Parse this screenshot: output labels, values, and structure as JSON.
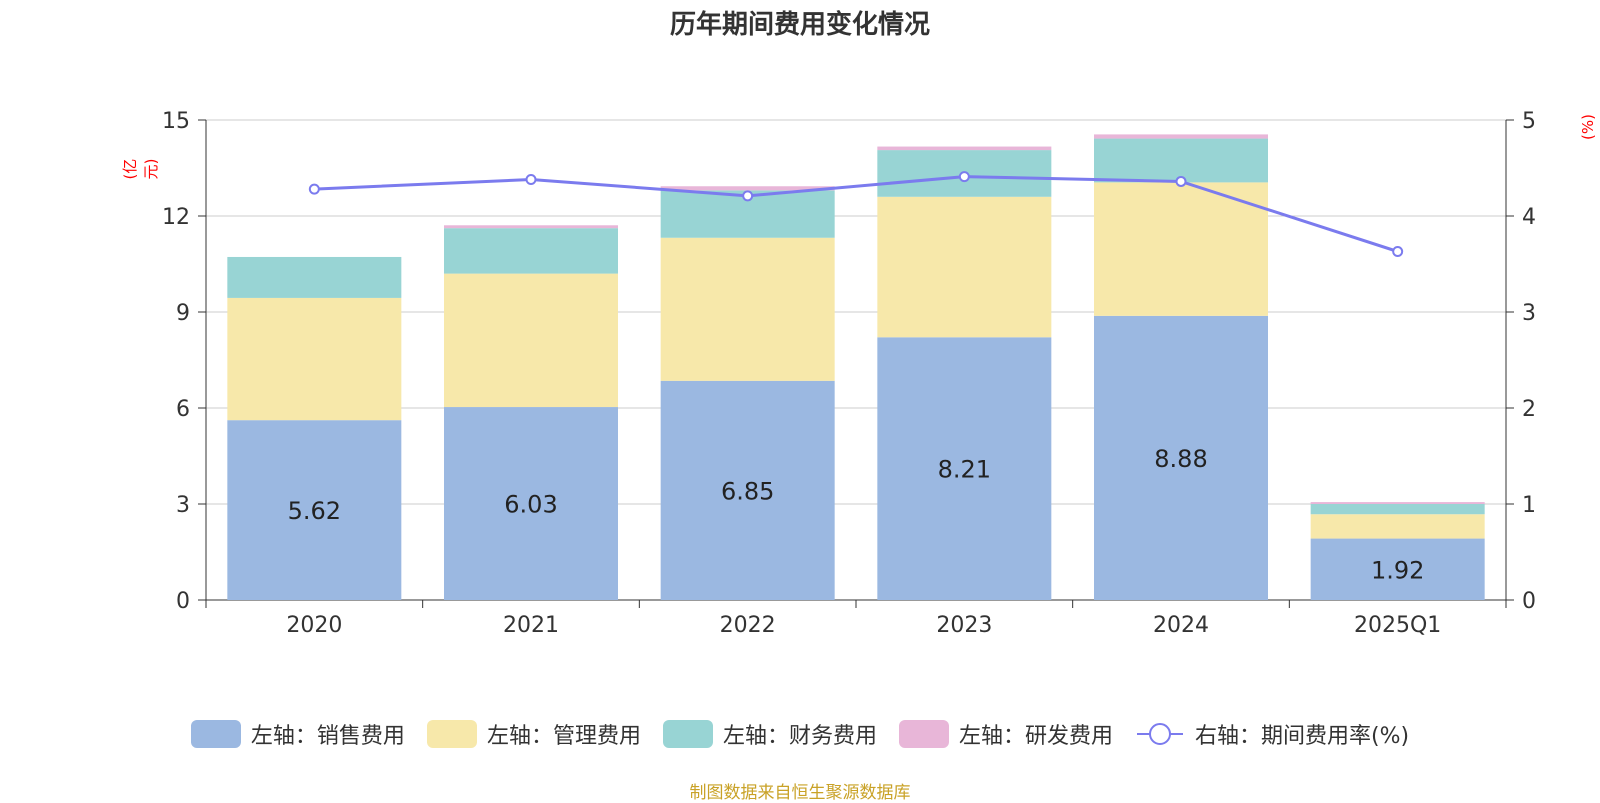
{
  "title": "历年期间费用变化情况",
  "left_unit": "(亿元)",
  "right_unit": "(%)",
  "source": "制图数据来自恒生聚源数据库",
  "colors": {
    "sales": "#9bb8e1",
    "management": "#f7e8aa",
    "finance": "#98d4d4",
    "rd": "#e8b6d8",
    "rate": "#7b7bee",
    "grid": "#cccccc",
    "axis": "#333333"
  },
  "legend": [
    {
      "label": "左轴：销售费用",
      "color": "#9bb8e1",
      "kind": "bar"
    },
    {
      "label": "左轴：管理费用",
      "color": "#f7e8aa",
      "kind": "bar"
    },
    {
      "label": "左轴：财务费用",
      "color": "#98d4d4",
      "kind": "bar"
    },
    {
      "label": "左轴：研发费用",
      "color": "#e8b6d8",
      "kind": "bar"
    },
    {
      "label": "右轴：期间费用率(%)",
      "color": "#7b7bee",
      "kind": "line"
    }
  ],
  "chart_data": {
    "type": "bar",
    "stacked": true,
    "categories": [
      "2020",
      "2021",
      "2022",
      "2023",
      "2024",
      "2025Q1"
    ],
    "series": [
      {
        "name": "左轴：销售费用",
        "axis": "left",
        "values": [
          5.62,
          6.03,
          6.85,
          8.21,
          8.88,
          1.92
        ],
        "labels_shown": true
      },
      {
        "name": "左轴：管理费用",
        "axis": "left",
        "values": [
          3.82,
          4.17,
          4.47,
          4.39,
          4.17,
          0.76
        ]
      },
      {
        "name": "左轴：财务费用",
        "axis": "left",
        "values": [
          1.28,
          1.42,
          1.48,
          1.46,
          1.37,
          0.32
        ]
      },
      {
        "name": "左轴：研发费用",
        "axis": "left",
        "values": [
          0.0,
          0.09,
          0.13,
          0.11,
          0.13,
          0.06
        ]
      },
      {
        "name": "右轴：期间费用率(%)",
        "axis": "right",
        "type": "line",
        "values": [
          4.28,
          4.38,
          4.21,
          4.41,
          4.36,
          3.63
        ]
      }
    ],
    "y_left": {
      "ticks": [
        0,
        3,
        6,
        9,
        12,
        15
      ],
      "ylim": [
        0,
        15
      ]
    },
    "y_right": {
      "ticks": [
        0,
        1,
        2,
        3,
        4,
        5
      ],
      "ylim": [
        0,
        5
      ]
    },
    "grid": true,
    "legend_position": "bottom"
  }
}
